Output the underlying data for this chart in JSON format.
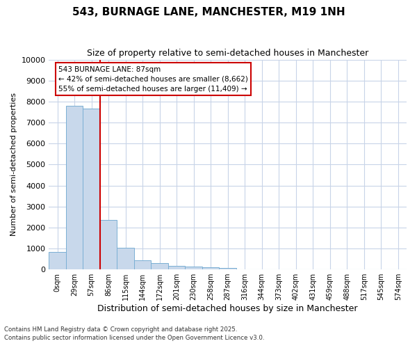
{
  "title": "543, BURNAGE LANE, MANCHESTER, M19 1NH",
  "subtitle": "Size of property relative to semi-detached houses in Manchester",
  "xlabel": "Distribution of semi-detached houses by size in Manchester",
  "ylabel": "Number of semi-detached properties",
  "bar_color": "#c8d8eb",
  "bar_edge_color": "#7aafd4",
  "categories": [
    "0sqm",
    "29sqm",
    "57sqm",
    "86sqm",
    "115sqm",
    "144sqm",
    "172sqm",
    "201sqm",
    "230sqm",
    "258sqm",
    "287sqm",
    "316sqm",
    "344sqm",
    "373sqm",
    "402sqm",
    "431sqm",
    "459sqm",
    "488sqm",
    "517sqm",
    "545sqm",
    "574sqm"
  ],
  "values": [
    820,
    7800,
    7650,
    2350,
    1050,
    450,
    290,
    185,
    130,
    110,
    60,
    20,
    10,
    5,
    2,
    1,
    0,
    0,
    0,
    0,
    0
  ],
  "ylim": [
    0,
    10000
  ],
  "yticks": [
    0,
    1000,
    2000,
    3000,
    4000,
    5000,
    6000,
    7000,
    8000,
    9000,
    10000
  ],
  "property_label": "543 BURNAGE LANE: 87sqm",
  "pct_smaller": 42,
  "pct_larger": 55,
  "n_smaller": 8662,
  "n_larger": 11409,
  "vline_x": 2.5,
  "annotation_box_color": "#ffffff",
  "annotation_box_edge": "#cc0000",
  "vline_color": "#cc0000",
  "grid_color": "#c8d4e8",
  "bg_color": "#ffffff",
  "footer1": "Contains HM Land Registry data © Crown copyright and database right 2025.",
  "footer2": "Contains public sector information licensed under the Open Government Licence v3.0."
}
